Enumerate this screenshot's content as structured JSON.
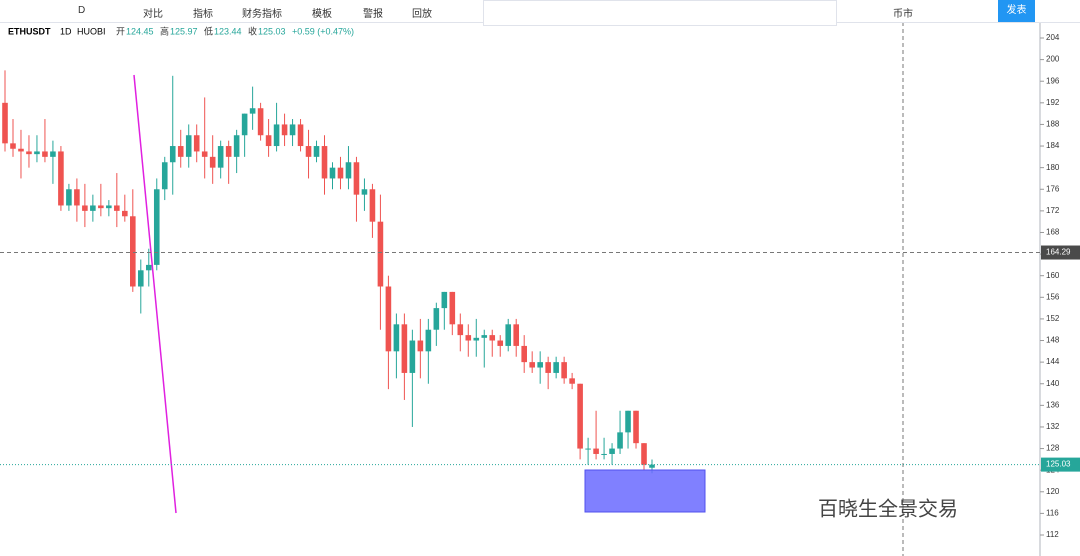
{
  "toolbar": {
    "interval": "D",
    "items": [
      "对比",
      "指标",
      "财务指标",
      "模板",
      "警报",
      "回放"
    ],
    "currency": "币市",
    "publish": "发表"
  },
  "chart_data": {
    "type": "candlestick",
    "symbol": "ETHUSDT",
    "timeframe": "1D",
    "exchange": "HUOBI",
    "info": [
      {
        "label": "开",
        "value": 124.45
      },
      {
        "label": "高",
        "value": 125.97
      },
      {
        "label": "低",
        "value": 123.44
      },
      {
        "label": "收",
        "value": 125.03
      }
    ],
    "change": "+0.59 (+0.47%)",
    "open": [
      192,
      184.5,
      183.5,
      183,
      182.5,
      183,
      182,
      183,
      173,
      176,
      173,
      172,
      173,
      172.5,
      173,
      172,
      171,
      158,
      161,
      162,
      176,
      181,
      184,
      182,
      186,
      183,
      182,
      180,
      184,
      182,
      186,
      190,
      191,
      186,
      184,
      188,
      186,
      188,
      184,
      182,
      184,
      178,
      180,
      178,
      181,
      175,
      176,
      170,
      158,
      146,
      151,
      142,
      148,
      146,
      150,
      154,
      157,
      151,
      149,
      148,
      148.5,
      149,
      148,
      147,
      151,
      147,
      144,
      143,
      144,
      142,
      144,
      141,
      140,
      128,
      128,
      127,
      127,
      128,
      131,
      135,
      129,
      124.45
    ],
    "high": [
      198,
      189,
      187,
      186,
      186,
      189,
      185,
      184,
      177,
      178,
      177,
      175,
      177,
      174,
      179,
      175,
      176,
      163,
      165,
      178,
      182,
      197,
      187,
      188,
      188,
      193,
      186,
      185,
      185,
      187,
      190,
      195,
      192,
      189,
      192,
      190,
      189,
      189,
      187,
      185,
      186,
      181,
      182,
      184,
      182,
      178,
      177,
      175,
      160,
      153,
      153,
      150,
      152,
      152,
      155,
      157,
      157,
      153,
      151,
      152,
      150,
      150,
      149,
      152,
      152,
      149,
      146,
      146,
      145,
      145,
      145,
      142,
      140,
      130,
      135,
      130,
      129,
      135,
      135,
      135,
      129,
      125.97
    ],
    "low": [
      183,
      182,
      178,
      180,
      181,
      181,
      177,
      172,
      172,
      170,
      169,
      170,
      171,
      171,
      169,
      170,
      157,
      153,
      158,
      161,
      174,
      175,
      180,
      180,
      181,
      178,
      177,
      178,
      177,
      179,
      182,
      187,
      185,
      182,
      183,
      184,
      184,
      183,
      178,
      181,
      175,
      176,
      176,
      176,
      170,
      172,
      167,
      150,
      139,
      141,
      137,
      132,
      141,
      140,
      147,
      150,
      149,
      146,
      145,
      145,
      143,
      145,
      145,
      146,
      145,
      142,
      142,
      140,
      139,
      141,
      140,
      139,
      126,
      125,
      126,
      126,
      125,
      127,
      128,
      128,
      124,
      123.44
    ],
    "close": [
      184.5,
      183.5,
      183,
      182.5,
      183,
      182,
      183,
      173,
      176,
      173,
      172,
      173,
      172.5,
      173,
      172,
      171,
      158,
      161,
      162,
      176,
      181,
      184,
      182,
      186,
      183,
      182,
      180,
      184,
      182,
      186,
      190,
      191,
      186,
      184,
      188,
      186,
      188,
      184,
      182,
      184,
      178,
      180,
      178,
      181,
      175,
      176,
      170,
      158,
      146,
      151,
      142,
      148,
      146,
      150,
      154,
      157,
      151,
      149,
      148,
      148.5,
      149,
      148,
      147,
      151,
      147,
      144,
      143,
      144,
      142,
      144,
      141,
      140,
      128,
      128,
      127,
      127,
      128,
      131,
      135,
      129,
      125,
      125.03
    ],
    "up_color": "#26a69a",
    "down_color": "#ef5350",
    "ylim": [
      112,
      204
    ],
    "yticks": [
      112,
      116,
      120,
      124,
      128,
      132,
      136,
      140,
      144,
      148,
      152,
      156,
      160,
      164,
      168,
      172,
      176,
      180,
      184,
      188,
      192,
      196,
      200,
      204
    ],
    "crosshair_price": 164.29,
    "last_price": 125.03
  },
  "watermark": "百晓生全景交易"
}
